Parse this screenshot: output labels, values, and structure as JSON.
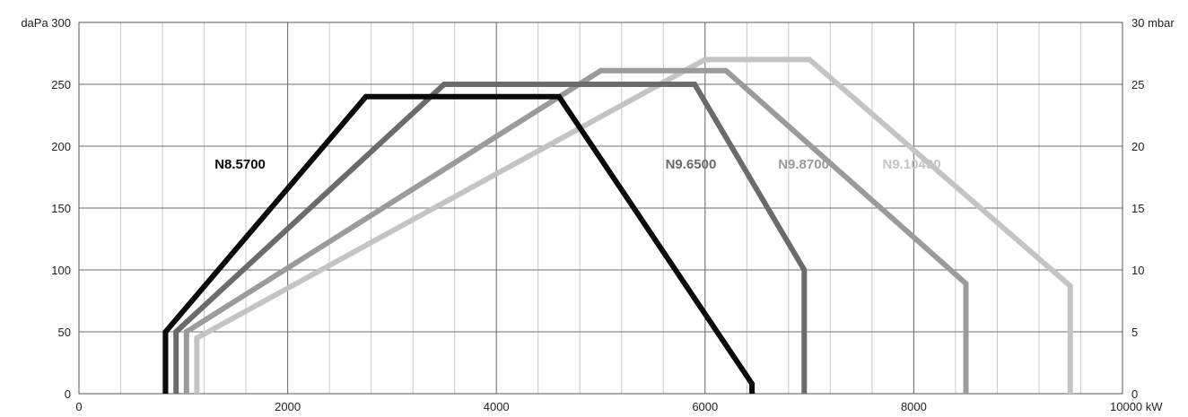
{
  "chart_data": {
    "type": "line",
    "title": "",
    "xlabel": "",
    "ylabel": "",
    "x_unit": "kW",
    "y_left_unit": "daPa",
    "y_right_unit": "mbar",
    "xlim": [
      0,
      10000
    ],
    "ylim_left": [
      0,
      300
    ],
    "ylim_right": [
      0,
      30
    ],
    "grid": true,
    "x_ticks": [
      0,
      2000,
      4000,
      6000,
      8000,
      10000
    ],
    "y_left_ticks": [
      0,
      50,
      100,
      150,
      200,
      250,
      300
    ],
    "y_right_ticks": [
      0,
      5,
      10,
      15,
      20,
      25,
      30
    ],
    "x_tick_labels": [
      "0",
      "2000",
      "4000",
      "6000",
      "8000",
      "10000 kW"
    ],
    "y_left_tick_labels": [
      "0",
      "50",
      "100",
      "150",
      "200",
      "250",
      "daPa 300"
    ],
    "y_right_tick_labels": [
      "0",
      "5",
      "10",
      "15",
      "20",
      "25",
      "30 mbar"
    ],
    "series": [
      {
        "name": "N9.10400",
        "color": "#c4c4c4",
        "label_at": [
          7700,
          182
        ],
        "points": [
          [
            1130,
            0
          ],
          [
            1130,
            45
          ],
          [
            6000,
            270
          ],
          [
            7000,
            270
          ],
          [
            9500,
            87
          ],
          [
            9500,
            0
          ]
        ]
      },
      {
        "name": "N9.8700",
        "color": "#9b9b9b",
        "label_at": [
          6700,
          182
        ],
        "points": [
          [
            1030,
            0
          ],
          [
            1030,
            50
          ],
          [
            5000,
            261
          ],
          [
            6200,
            261
          ],
          [
            8500,
            89
          ],
          [
            8500,
            0
          ]
        ]
      },
      {
        "name": "N9.6500",
        "color": "#6b6b6b",
        "label_at": [
          5620,
          182
        ],
        "points": [
          [
            930,
            0
          ],
          [
            930,
            50
          ],
          [
            3500,
            250
          ],
          [
            5900,
            250
          ],
          [
            6950,
            100
          ],
          [
            6950,
            0
          ]
        ]
      },
      {
        "name": "N8.5700",
        "color": "#0a0a0a",
        "label_at": [
          1300,
          182
        ],
        "points": [
          [
            830,
            0
          ],
          [
            830,
            50
          ],
          [
            2750,
            240
          ],
          [
            4600,
            240
          ],
          [
            6450,
            8
          ],
          [
            6450,
            0
          ]
        ]
      }
    ]
  }
}
